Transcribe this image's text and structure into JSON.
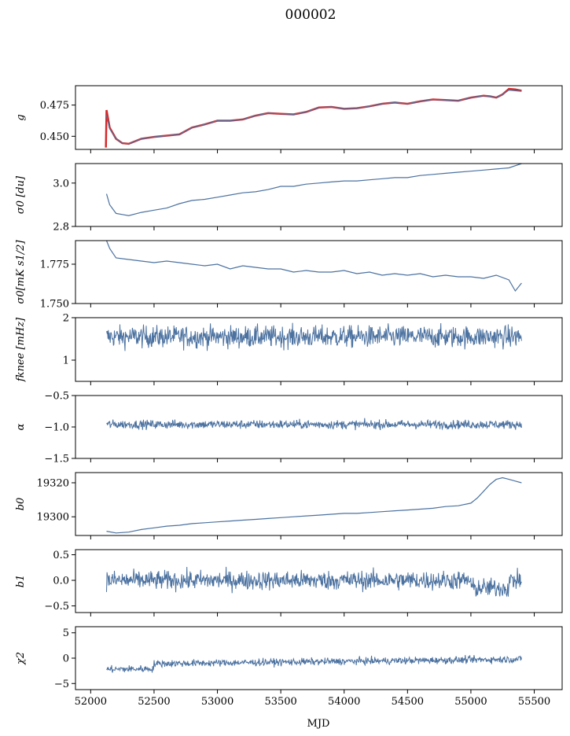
{
  "title": "000002",
  "xlabel": "MJD",
  "chart_data": [
    {
      "type": "line",
      "ylabel": "g",
      "ylim": [
        0.4395,
        0.4905
      ],
      "xlim": [
        51880,
        55720
      ],
      "yticks": [
        0.45,
        0.475
      ],
      "ytick_labels": [
        "0.450",
        "0.475"
      ],
      "series": [
        {
          "color": "#d62728",
          "x": [
            52120,
            52125,
            52150,
            52200,
            52250,
            52300,
            52400,
            52500,
            52600,
            52700,
            52800,
            52900,
            53000,
            53100,
            53200,
            53300,
            53400,
            53500,
            53600,
            53700,
            53800,
            53900,
            54000,
            54100,
            54200,
            54300,
            54400,
            54500,
            54600,
            54700,
            54800,
            54900,
            55000,
            55100,
            55150,
            55200,
            55250,
            55300,
            55350,
            55400
          ],
          "y": [
            0.441,
            0.471,
            0.457,
            0.448,
            0.4445,
            0.444,
            0.448,
            0.4495,
            0.4505,
            0.4515,
            0.457,
            0.4595,
            0.4625,
            0.4625,
            0.4635,
            0.4665,
            0.4685,
            0.468,
            0.4675,
            0.4695,
            0.473,
            0.4735,
            0.472,
            0.4725,
            0.474,
            0.476,
            0.477,
            0.476,
            0.478,
            0.4795,
            0.479,
            0.4785,
            0.481,
            0.4825,
            0.482,
            0.481,
            0.4835,
            0.488,
            0.4875,
            0.4865
          ]
        },
        {
          "color": "#4c72a0",
          "x": [
            52125,
            52150,
            52200,
            52250,
            52300,
            52400,
            52500,
            52600,
            52700,
            52800,
            52900,
            53000,
            53100,
            53200,
            53300,
            53400,
            53500,
            53600,
            53700,
            53800,
            53900,
            54000,
            54100,
            54200,
            54300,
            54400,
            54500,
            54600,
            54700,
            54800,
            54900,
            55000,
            55100,
            55150,
            55200,
            55250,
            55300,
            55350,
            55400
          ],
          "y": [
            0.467,
            0.456,
            0.448,
            0.4445,
            0.444,
            0.448,
            0.4495,
            0.4505,
            0.4515,
            0.457,
            0.4595,
            0.4625,
            0.4625,
            0.4635,
            0.4665,
            0.4685,
            0.468,
            0.4675,
            0.4695,
            0.473,
            0.4735,
            0.472,
            0.4725,
            0.474,
            0.476,
            0.477,
            0.476,
            0.478,
            0.4795,
            0.479,
            0.4785,
            0.481,
            0.4825,
            0.482,
            0.481,
            0.4835,
            0.487,
            0.4865,
            0.486
          ]
        }
      ]
    },
    {
      "type": "line",
      "ylabel": "σ0 [du]",
      "ylim": [
        2.8,
        3.09
      ],
      "xlim": [
        51880,
        55720
      ],
      "yticks": [
        2.8,
        3.0
      ],
      "ytick_labels": [
        "2.8",
        "3.0"
      ],
      "series": [
        {
          "color": "#4c72a0",
          "x": [
            52125,
            52150,
            52200,
            52250,
            52300,
            52400,
            52500,
            52600,
            52700,
            52800,
            52900,
            53000,
            53100,
            53200,
            53300,
            53400,
            53500,
            53600,
            53700,
            53800,
            53900,
            54000,
            54100,
            54200,
            54300,
            54400,
            54500,
            54600,
            54700,
            54800,
            54900,
            55000,
            55100,
            55200,
            55300,
            55400
          ],
          "y": [
            2.95,
            2.9,
            2.86,
            2.855,
            2.85,
            2.865,
            2.875,
            2.885,
            2.905,
            2.92,
            2.925,
            2.935,
            2.945,
            2.955,
            2.96,
            2.97,
            2.985,
            2.985,
            2.995,
            3.0,
            3.005,
            3.01,
            3.01,
            3.015,
            3.02,
            3.025,
            3.025,
            3.035,
            3.04,
            3.045,
            3.05,
            3.055,
            3.06,
            3.065,
            3.07,
            3.09
          ]
        }
      ]
    },
    {
      "type": "line",
      "ylabel": "σ0[mK s1/2]",
      "ylim": [
        1.75,
        1.79
      ],
      "xlim": [
        51880,
        55720
      ],
      "yticks": [
        1.75,
        1.775
      ],
      "ytick_labels": [
        "1.750",
        "1.775"
      ],
      "series": [
        {
          "color": "#4c72a0",
          "x": [
            52125,
            52150,
            52200,
            52300,
            52400,
            52500,
            52600,
            52700,
            52800,
            52900,
            53000,
            53100,
            53200,
            53300,
            53400,
            53500,
            53600,
            53700,
            53800,
            53900,
            54000,
            54100,
            54200,
            54300,
            54400,
            54500,
            54600,
            54700,
            54800,
            54900,
            55000,
            55100,
            55200,
            55300,
            55350,
            55400
          ],
          "y": [
            1.79,
            1.785,
            1.779,
            1.778,
            1.777,
            1.776,
            1.777,
            1.776,
            1.775,
            1.774,
            1.775,
            1.772,
            1.774,
            1.773,
            1.772,
            1.772,
            1.77,
            1.771,
            1.77,
            1.77,
            1.771,
            1.769,
            1.77,
            1.768,
            1.769,
            1.768,
            1.769,
            1.767,
            1.768,
            1.767,
            1.767,
            1.766,
            1.768,
            1.765,
            1.758,
            1.763
          ]
        }
      ]
    },
    {
      "type": "line",
      "ylabel": "fknee [mHz]",
      "ylim": [
        0.5,
        2.0
      ],
      "xlim": [
        51880,
        55720
      ],
      "yticks": [
        1,
        2
      ],
      "ytick_labels": [
        "1",
        "2"
      ],
      "noise": {
        "x_start": 52125,
        "x_end": 55400,
        "mean": 1.55,
        "amplitude": 0.22,
        "points": 900
      },
      "series": [
        {
          "color": "#4c72a0"
        }
      ]
    },
    {
      "type": "line",
      "ylabel": "α",
      "ylim": [
        -1.5,
        -0.5
      ],
      "xlim": [
        51880,
        55720
      ],
      "yticks": [
        -1.5,
        -1.0,
        -0.5
      ],
      "ytick_labels": [
        "−1.5",
        "−1.0",
        "−0.5"
      ],
      "noise": {
        "x_start": 52125,
        "x_end": 55400,
        "mean": -0.96,
        "amplitude": 0.06,
        "points": 900
      },
      "series": [
        {
          "color": "#4c72a0"
        }
      ]
    },
    {
      "type": "line",
      "ylabel": "b0",
      "ylim": [
        19289,
        19326
      ],
      "xlim": [
        51880,
        55720
      ],
      "yticks": [
        19300,
        19320
      ],
      "ytick_labels": [
        "19300",
        "19320"
      ],
      "series": [
        {
          "color": "#4c72a0",
          "x": [
            52125,
            52200,
            52300,
            52400,
            52500,
            52600,
            52700,
            52800,
            52900,
            53000,
            53100,
            53200,
            53300,
            53400,
            53500,
            53600,
            53700,
            53800,
            53900,
            54000,
            54100,
            54200,
            54300,
            54400,
            54500,
            54600,
            54700,
            54800,
            54900,
            55000,
            55050,
            55100,
            55150,
            55200,
            55250,
            55300,
            55350,
            55400
          ],
          "y": [
            19291.5,
            19290.5,
            19291,
            19292.5,
            19293.5,
            19294.5,
            19295,
            19296,
            19296.5,
            19297,
            19297.5,
            19298,
            19298.5,
            19299,
            19299.5,
            19300,
            19300.5,
            19301,
            19301.5,
            19302,
            19302,
            19302.5,
            19303,
            19303.5,
            19304,
            19304.5,
            19305,
            19306,
            19306.5,
            19308,
            19311,
            19315,
            19319,
            19322,
            19323,
            19322,
            19321,
            19320
          ]
        }
      ]
    },
    {
      "type": "line",
      "ylabel": "b1",
      "ylim": [
        -0.63,
        0.6
      ],
      "xlim": [
        51880,
        55720
      ],
      "yticks": [
        -0.5,
        0.0,
        0.5
      ],
      "ytick_labels": [
        "−0.5",
        "0.0",
        "0.5"
      ],
      "noise": {
        "x_start": 52125,
        "x_end": 55400,
        "mean": 0.0,
        "amplitude": 0.16,
        "points": 900
      },
      "series": [
        {
          "color": "#4c72a0"
        }
      ]
    },
    {
      "type": "line",
      "ylabel": "χ2",
      "ylim": [
        -6.2,
        6.2
      ],
      "xlim": [
        51880,
        55720
      ],
      "yticks": [
        -5,
        0,
        5
      ],
      "ytick_labels": [
        "−5",
        "0",
        "5"
      ],
      "noise": {
        "x_start": 52125,
        "x_end": 55400,
        "mean": -1.2,
        "amplitude": 0.6,
        "points": 900
      },
      "series": [
        {
          "color": "#4c72a0"
        }
      ]
    }
  ],
  "xticks": [
    52000,
    52500,
    53000,
    53500,
    54000,
    54500,
    55000,
    55500
  ],
  "xtick_labels": [
    "52000",
    "52500",
    "53000",
    "53500",
    "54000",
    "54500",
    "55000",
    "55500"
  ]
}
